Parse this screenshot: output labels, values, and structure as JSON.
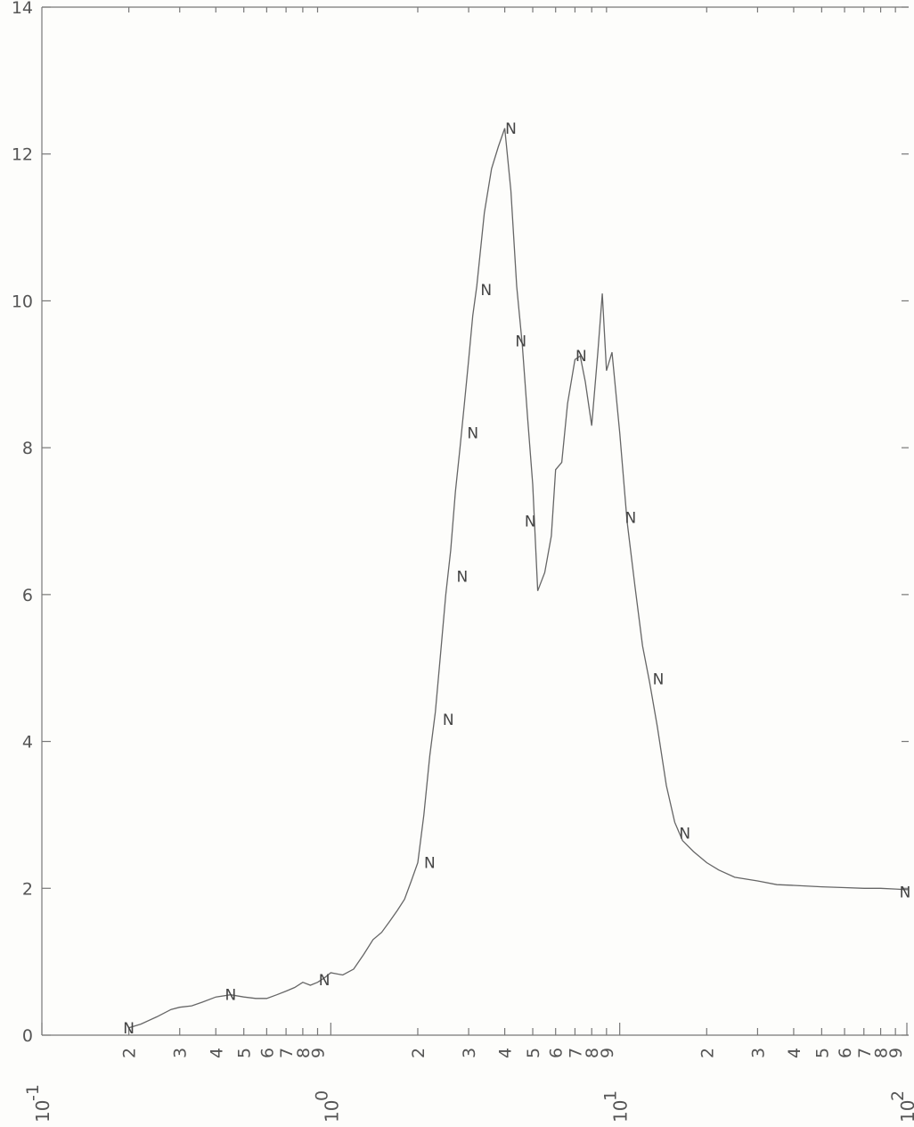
{
  "chart_data": {
    "type": "line",
    "title": "",
    "xlabel": "",
    "ylabel": "",
    "x_scale": "log",
    "xlim": [
      0.1,
      100
    ],
    "ylim": [
      0,
      14
    ],
    "grid": false,
    "y_ticks": [
      {
        "value": 0,
        "label": "0"
      },
      {
        "value": 2,
        "label": "2"
      },
      {
        "value": 4,
        "label": "4"
      },
      {
        "value": 6,
        "label": "6"
      },
      {
        "value": 8,
        "label": "8"
      },
      {
        "value": 10,
        "label": "10"
      },
      {
        "value": 12,
        "label": "12"
      },
      {
        "value": 14,
        "label": "14"
      }
    ],
    "x_minor_ticks": [
      {
        "value": 0.2,
        "label": "2"
      },
      {
        "value": 0.3,
        "label": "3"
      },
      {
        "value": 0.4,
        "label": "4"
      },
      {
        "value": 0.5,
        "label": "5"
      },
      {
        "value": 0.6,
        "label": "6"
      },
      {
        "value": 0.7,
        "label": "7"
      },
      {
        "value": 0.8,
        "label": "8"
      },
      {
        "value": 0.9,
        "label": "9"
      },
      {
        "value": 2,
        "label": "2"
      },
      {
        "value": 3,
        "label": "3"
      },
      {
        "value": 4,
        "label": "4"
      },
      {
        "value": 5,
        "label": "5"
      },
      {
        "value": 6,
        "label": "6"
      },
      {
        "value": 7,
        "label": "7"
      },
      {
        "value": 8,
        "label": "8"
      },
      {
        "value": 9,
        "label": "9"
      },
      {
        "value": 20,
        "label": "2"
      },
      {
        "value": 30,
        "label": "3"
      },
      {
        "value": 40,
        "label": "4"
      },
      {
        "value": 50,
        "label": "5"
      },
      {
        "value": 60,
        "label": "6"
      },
      {
        "value": 70,
        "label": "7"
      },
      {
        "value": 80,
        "label": "8"
      },
      {
        "value": 90,
        "label": "9"
      }
    ],
    "x_decades": [
      {
        "value": 0.1,
        "base": "10",
        "exponent": "-1"
      },
      {
        "value": 1,
        "base": "10",
        "exponent": "0"
      },
      {
        "value": 10,
        "base": "10",
        "exponent": "1"
      },
      {
        "value": 100,
        "base": "10",
        "exponent": "2"
      }
    ],
    "series": [
      {
        "marker": "N",
        "x": [
          0.2,
          0.22,
          0.25,
          0.28,
          0.3,
          0.33,
          0.36,
          0.4,
          0.45,
          0.5,
          0.55,
          0.6,
          0.65,
          0.7,
          0.75,
          0.8,
          0.85,
          0.9,
          0.95,
          1.0,
          1.1,
          1.2,
          1.3,
          1.4,
          1.5,
          1.6,
          1.7,
          1.8,
          1.9,
          2.0,
          2.1,
          2.2,
          2.3,
          2.4,
          2.5,
          2.6,
          2.7,
          2.8,
          2.9,
          3.0,
          3.1,
          3.2,
          3.4,
          3.6,
          3.8,
          4.0,
          4.2,
          4.4,
          4.6,
          4.8,
          5.0,
          5.2,
          5.5,
          5.8,
          6.0,
          6.3,
          6.6,
          7.0,
          7.3,
          7.6,
          8.0,
          8.4,
          8.7,
          9.0,
          9.4,
          10.0,
          10.6,
          11.3,
          12.0,
          12.7,
          13.5,
          14.5,
          15.5,
          16.5,
          18,
          20,
          22,
          25,
          30,
          35,
          40,
          50,
          60,
          70,
          80,
          90,
          100
        ],
        "y": [
          0.1,
          0.15,
          0.25,
          0.35,
          0.38,
          0.4,
          0.45,
          0.52,
          0.55,
          0.52,
          0.5,
          0.5,
          0.55,
          0.6,
          0.65,
          0.72,
          0.68,
          0.72,
          0.78,
          0.85,
          0.82,
          0.9,
          1.1,
          1.3,
          1.4,
          1.55,
          1.7,
          1.85,
          2.1,
          2.35,
          3.0,
          3.8,
          4.4,
          5.2,
          6.0,
          6.6,
          7.4,
          8.0,
          8.6,
          9.2,
          9.8,
          10.2,
          11.2,
          11.8,
          12.1,
          12.35,
          11.5,
          10.2,
          9.4,
          8.4,
          7.5,
          6.05,
          6.3,
          6.8,
          7.7,
          7.8,
          8.6,
          9.2,
          9.25,
          8.9,
          8.3,
          9.3,
          10.1,
          9.05,
          9.3,
          8.2,
          7.0,
          6.1,
          5.3,
          4.8,
          4.2,
          3.4,
          2.9,
          2.65,
          2.5,
          2.35,
          2.25,
          2.15,
          2.1,
          2.05,
          2.04,
          2.02,
          2.01,
          2.0,
          2.0,
          1.99,
          1.98
        ]
      }
    ],
    "marker_points": [
      {
        "x": 0.2,
        "y": 0.1
      },
      {
        "x": 0.45,
        "y": 0.55
      },
      {
        "x": 0.95,
        "y": 0.75
      },
      {
        "x": 2.2,
        "y": 2.35
      },
      {
        "x": 2.55,
        "y": 4.3
      },
      {
        "x": 2.85,
        "y": 6.25
      },
      {
        "x": 3.1,
        "y": 8.2
      },
      {
        "x": 3.45,
        "y": 10.15
      },
      {
        "x": 4.2,
        "y": 12.35
      },
      {
        "x": 4.55,
        "y": 9.45
      },
      {
        "x": 4.9,
        "y": 7.0
      },
      {
        "x": 7.35,
        "y": 9.25
      },
      {
        "x": 10.9,
        "y": 7.05
      },
      {
        "x": 13.6,
        "y": 4.85
      },
      {
        "x": 16.8,
        "y": 2.75
      },
      {
        "x": 100,
        "y": 1.95
      }
    ]
  }
}
